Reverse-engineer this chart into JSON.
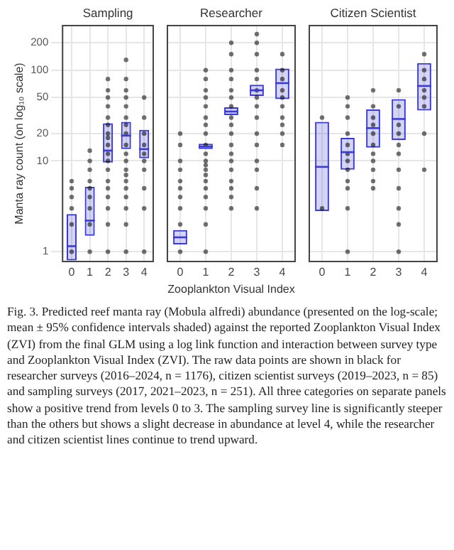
{
  "chart_data": [
    {
      "type": "box",
      "title": "Sampling",
      "categories": [
        "0",
        "1",
        "2",
        "3",
        "4"
      ],
      "color": "#3a3ad6",
      "ylabel": "Manta ray count (on log₁₀ scale)",
      "log": true,
      "grid": true,
      "ylim": [
        0.78,
        310
      ],
      "yticks": [
        1,
        10,
        20,
        50,
        100,
        200
      ],
      "boxes": [
        {
          "low": 0.8,
          "q1": 0.8,
          "median": 1.15,
          "q3": 2.6,
          "high": 2.6
        },
        {
          "low": 1.5,
          "q1": 1.5,
          "median": 2.2,
          "q3": 5.2,
          "high": 5.2
        },
        {
          "low": 9.6,
          "q1": 9.6,
          "median": 13,
          "q3": 26,
          "high": 26
        },
        {
          "low": 13.5,
          "q1": 13.5,
          "median": 19,
          "q3": 27,
          "high": 27
        },
        {
          "low": 10.7,
          "q1": 10.7,
          "median": 13.5,
          "q3": 22,
          "high": 22
        }
      ],
      "series": [
        {
          "type": "scatter",
          "color": "#000000",
          "x": [
            "0",
            "0",
            "0",
            "0",
            "0",
            "0",
            "1",
            "1",
            "1",
            "1",
            "1",
            "1",
            "1",
            "1",
            "1",
            "2",
            "2",
            "2",
            "2",
            "2",
            "2",
            "2",
            "2",
            "2",
            "2",
            "2",
            "2",
            "2",
            "2",
            "2",
            "2",
            "2",
            "2",
            "3",
            "3",
            "3",
            "3",
            "3",
            "3",
            "3",
            "3",
            "3",
            "3",
            "3",
            "3",
            "3",
            "3",
            "3",
            "3",
            "3",
            "3",
            "3",
            "4",
            "4",
            "4",
            "4",
            "4",
            "4",
            "4",
            "4",
            "4",
            "4"
          ],
          "values": [
            1,
            2,
            3,
            4,
            5,
            6,
            1,
            2,
            3,
            4,
            5,
            6,
            8,
            10,
            13,
            1,
            2,
            3,
            4,
            5,
            6,
            8,
            10,
            12,
            15,
            18,
            20,
            25,
            30,
            40,
            50,
            60,
            80,
            1,
            2,
            3,
            4,
            5,
            6,
            7,
            8,
            10,
            12,
            15,
            20,
            25,
            30,
            40,
            50,
            60,
            80,
            130,
            1,
            3,
            5,
            8,
            10,
            12,
            15,
            20,
            30,
            50
          ]
        }
      ]
    },
    {
      "type": "box",
      "title": "Researcher",
      "categories": [
        "0",
        "1",
        "2",
        "3",
        "4"
      ],
      "color": "#3a3ad6",
      "xlabel": "Zooplankton Visual Index",
      "log": true,
      "grid": true,
      "ylim": [
        0.78,
        310
      ],
      "yticks": [
        1,
        10,
        20,
        50,
        100,
        200
      ],
      "tick_labels": "x",
      "boxes": [
        {
          "low": 1.2,
          "q1": 1.2,
          "median": 1.44,
          "q3": 1.73,
          "high": 1.73
        },
        {
          "low": 13.5,
          "q1": 13.5,
          "median": 14.4,
          "q3": 15.5,
          "high": 15.5
        },
        {
          "low": 32,
          "q1": 32,
          "median": 35,
          "q3": 39,
          "high": 39
        },
        {
          "low": 52,
          "q1": 52,
          "median": 60,
          "q3": 69,
          "high": 69
        },
        {
          "low": 48,
          "q1": 48,
          "median": 72,
          "q3": 104,
          "high": 104
        }
      ],
      "series": [
        {
          "type": "scatter",
          "color": "#000000",
          "x": [
            "0",
            "0",
            "0",
            "0",
            "0",
            "0",
            "0",
            "0",
            "0",
            "0",
            "1",
            "1",
            "1",
            "1",
            "1",
            "1",
            "1",
            "1",
            "1",
            "1",
            "1",
            "1",
            "1",
            "1",
            "1",
            "1",
            "1",
            "1",
            "1",
            "1",
            "2",
            "2",
            "2",
            "2",
            "2",
            "2",
            "2",
            "2",
            "2",
            "2",
            "2",
            "2",
            "2",
            "2",
            "2",
            "2",
            "2",
            "2",
            "3",
            "3",
            "3",
            "3",
            "3",
            "3",
            "3",
            "3",
            "3",
            "3",
            "3",
            "3",
            "3",
            "3",
            "3",
            "4",
            "4",
            "4",
            "4",
            "4",
            "4",
            "4",
            "4",
            "4",
            "4"
          ],
          "values": [
            1,
            2,
            3,
            4,
            5,
            6,
            8,
            10,
            15,
            20,
            1,
            2,
            3,
            4,
            5,
            6,
            7,
            8,
            9,
            10,
            12,
            15,
            20,
            25,
            30,
            40,
            50,
            60,
            80,
            100,
            3,
            4,
            5,
            6,
            8,
            10,
            12,
            15,
            20,
            25,
            30,
            40,
            50,
            60,
            80,
            100,
            150,
            200,
            3,
            5,
            8,
            10,
            15,
            20,
            30,
            40,
            50,
            60,
            80,
            100,
            150,
            200,
            250,
            15,
            20,
            25,
            30,
            40,
            50,
            60,
            80,
            100,
            150
          ]
        }
      ]
    },
    {
      "type": "box",
      "title": "Citizen Scientist",
      "categories": [
        "0",
        "1",
        "2",
        "3",
        "4"
      ],
      "color": "#3a3ad6",
      "log": true,
      "grid": true,
      "ylim": [
        0.78,
        310
      ],
      "yticks": [
        1,
        10,
        20,
        50,
        100,
        200
      ],
      "tick_labels": "x",
      "boxes": [
        {
          "low": 2.8,
          "q1": 2.8,
          "median": 8.6,
          "q3": 27,
          "high": 27
        },
        {
          "low": 8,
          "q1": 8,
          "median": 12.5,
          "q3": 18,
          "high": 18
        },
        {
          "low": 14,
          "q1": 14,
          "median": 23,
          "q3": 37,
          "high": 37
        },
        {
          "low": 17,
          "q1": 17,
          "median": 29,
          "q3": 48,
          "high": 48
        },
        {
          "low": 36,
          "q1": 36,
          "median": 67,
          "q3": 120,
          "high": 120
        }
      ],
      "series": [
        {
          "type": "scatter",
          "color": "#000000",
          "x": [
            "0",
            "0",
            "1",
            "1",
            "1",
            "1",
            "1",
            "1",
            "1",
            "1",
            "1",
            "1",
            "1",
            "1",
            "2",
            "2",
            "2",
            "2",
            "2",
            "2",
            "2",
            "2",
            "2",
            "2",
            "2",
            "3",
            "3",
            "3",
            "3",
            "3",
            "3",
            "3",
            "3",
            "3",
            "3",
            "3",
            "4",
            "4",
            "4",
            "4",
            "4",
            "4",
            "4",
            "4"
          ],
          "values": [
            3,
            30,
            1,
            3,
            5,
            6,
            8,
            10,
            12,
            15,
            20,
            30,
            40,
            50,
            5,
            6,
            8,
            10,
            12,
            15,
            20,
            25,
            30,
            40,
            60,
            1,
            2,
            3,
            5,
            8,
            12,
            15,
            20,
            25,
            40,
            60,
            8,
            20,
            40,
            50,
            60,
            80,
            100,
            150
          ]
        }
      ],
      "annotations": [
        "Fig. 3. Predicted reef manta ray (Mobula alfredi) abundance (presented on the log-scale; mean ± 95% confidence intervals shaded) against the reported Zooplankton Visual Index (ZVI) from the final GLM using a log link function and interaction between survey type and Zooplankton Visual Index (ZVI). The raw data points are shown in black for researcher surveys (2016–2024, n = 1176), citizen scientist surveys (2019–2023, n = 85) and sampling surveys (2017, 2021–2023, n = 251). All three categories on separate panels show a positive trend from levels 0 to 3. The sampling survey line is significantly steeper than the others but shows a slight decrease in abundance at level 4, while the researcher and citizen scientist lines continue to trend upward."
      ]
    }
  ]
}
